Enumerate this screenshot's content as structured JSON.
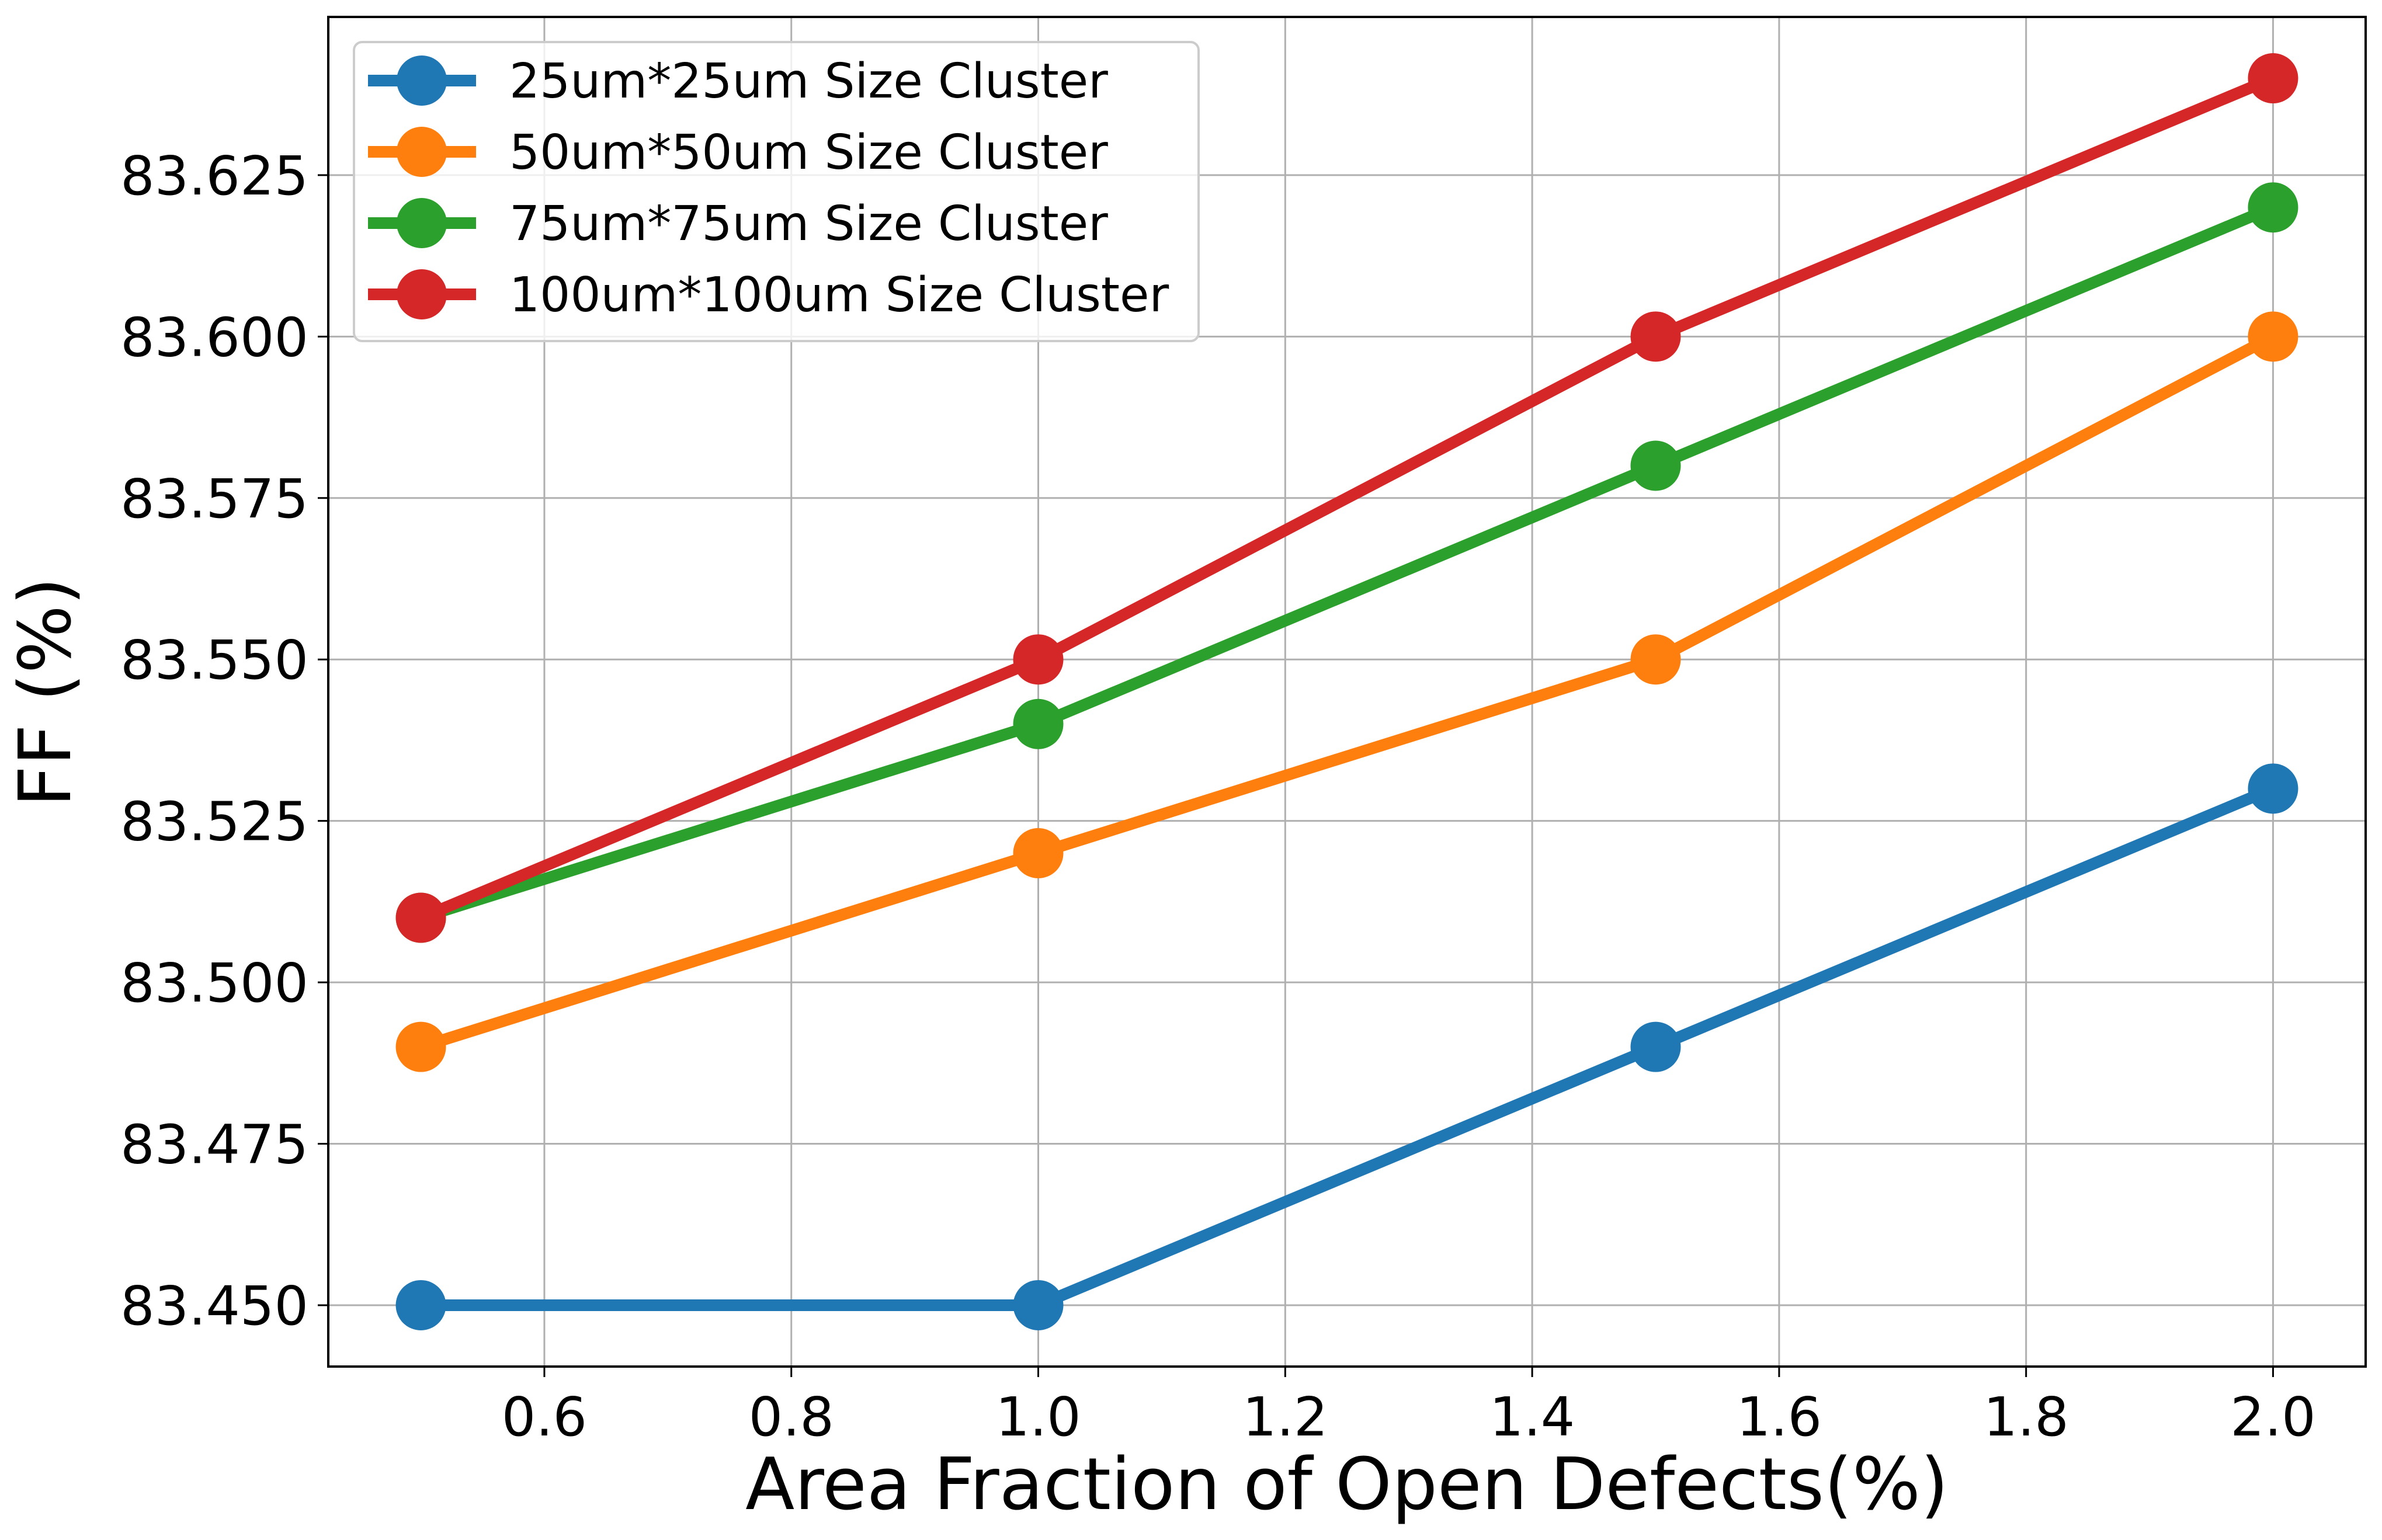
{
  "chart_data": {
    "type": "line",
    "title": "",
    "xlabel": "Area Fraction of Open Defects(%)",
    "ylabel": "FF (%)",
    "xlim": [
      0.425,
      2.075
    ],
    "ylim": [
      83.4405,
      83.6495
    ],
    "x_ticks": [
      0.6,
      0.8,
      1.0,
      1.2,
      1.4,
      1.6,
      1.8,
      2.0
    ],
    "x_tick_labels": [
      "0.6",
      "0.8",
      "1.0",
      "1.2",
      "1.4",
      "1.6",
      "1.8",
      "2.0"
    ],
    "y_ticks": [
      83.45,
      83.475,
      83.5,
      83.525,
      83.55,
      83.575,
      83.6,
      83.625
    ],
    "y_tick_labels": [
      "83.450",
      "83.475",
      "83.500",
      "83.525",
      "83.550",
      "83.575",
      "83.600",
      "83.625"
    ],
    "grid": true,
    "legend_position": "top-left",
    "x": [
      0.5,
      1.0,
      1.5,
      2.0
    ],
    "series": [
      {
        "name": "25um*25um Size Cluster",
        "color": "#1f77b4",
        "values": [
          83.45,
          83.45,
          83.49,
          83.53
        ]
      },
      {
        "name": "50um*50um Size Cluster",
        "color": "#ff7f0e",
        "values": [
          83.49,
          83.52,
          83.55,
          83.6
        ]
      },
      {
        "name": "75um*75um Size Cluster",
        "color": "#2ca02c",
        "values": [
          83.51,
          83.54,
          83.58,
          83.62
        ]
      },
      {
        "name": "100um*100um Size Cluster",
        "color": "#d62728",
        "values": [
          83.51,
          83.55,
          83.6,
          83.64
        ]
      }
    ]
  }
}
